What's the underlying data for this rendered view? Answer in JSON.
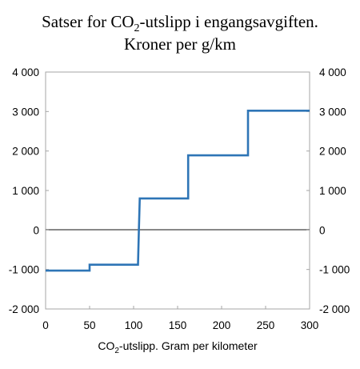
{
  "chart_data": {
    "type": "line",
    "title_line1": {
      "pre": "Satser for CO",
      "sub": "2",
      "post": "-utslipp i engangsavgiften."
    },
    "title_line2": "Kroner per g/km",
    "xlabel": {
      "pre": "CO",
      "sub": "2",
      "post": "-utslipp. Gram per kilometer"
    },
    "ylabel": "",
    "xlim": [
      0,
      300
    ],
    "ylim": [
      -2000,
      4000
    ],
    "x_ticks": [
      0,
      50,
      100,
      150,
      200,
      250,
      300
    ],
    "x_tick_labels": [
      "0",
      "50",
      "100",
      "150",
      "200",
      "250",
      "300"
    ],
    "y_ticks": [
      -2000,
      -1000,
      0,
      1000,
      2000,
      3000,
      4000
    ],
    "y_tick_labels": [
      "-2 000",
      "-1 000",
      "0",
      "1 000",
      "2 000",
      "3 000",
      "4 000"
    ],
    "grid": false,
    "legend": "none",
    "series": [
      {
        "color": "#2e75b6",
        "points": [
          [
            0,
            -1030
          ],
          [
            50,
            -1030
          ],
          [
            50,
            -880
          ],
          [
            105,
            -880
          ],
          [
            106,
            0
          ],
          [
            107,
            800
          ],
          [
            162,
            800
          ],
          [
            162,
            1890
          ],
          [
            230,
            1890
          ],
          [
            230,
            3020
          ],
          [
            300,
            3020
          ]
        ]
      }
    ]
  }
}
